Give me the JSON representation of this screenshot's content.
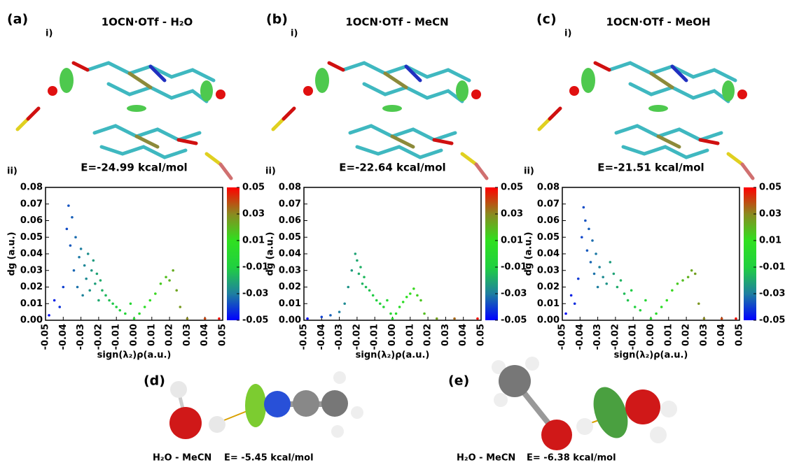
{
  "panels": [
    {
      "label": "(a)",
      "sub": "i)",
      "title": "1OCN·OTf - H₂O"
    },
    {
      "label": "(b)",
      "sub": "i)",
      "title": "1OCN·OTf - MeCN"
    },
    {
      "label": "(c)",
      "sub": "i)",
      "title": "1OCN·OTf - MeOH"
    }
  ],
  "chart_data": [
    {
      "type": "scatter",
      "panel_label": "ii)",
      "title": "E=-24.99 kcal/mol",
      "xlabel": "sign(λ₂)ρ(a.u.)",
      "ylabel": "dg (a.u.)",
      "x": [
        -0.048,
        -0.045,
        -0.042,
        -0.04,
        -0.038,
        -0.037,
        -0.036,
        -0.035,
        -0.034,
        -0.033,
        -0.032,
        -0.031,
        -0.03,
        -0.029,
        -0.028,
        -0.027,
        -0.026,
        -0.025,
        -0.024,
        -0.023,
        -0.022,
        -0.021,
        -0.02,
        -0.019,
        -0.018,
        -0.016,
        -0.014,
        -0.012,
        -0.01,
        -0.008,
        -0.005,
        -0.002,
        0.0,
        0.003,
        0.006,
        0.009,
        0.012,
        0.015,
        0.018,
        0.02,
        0.022,
        0.024,
        0.026,
        0.03,
        0.04,
        0.048
      ],
      "values": [
        0.003,
        0.012,
        0.008,
        0.02,
        0.055,
        0.069,
        0.045,
        0.062,
        0.03,
        0.05,
        0.02,
        0.038,
        0.043,
        0.015,
        0.033,
        0.025,
        0.04,
        0.018,
        0.03,
        0.036,
        0.022,
        0.028,
        0.012,
        0.024,
        0.018,
        0.015,
        0.012,
        0.01,
        0.008,
        0.006,
        0.004,
        0.01,
        0.001,
        0.004,
        0.008,
        0.012,
        0.016,
        0.022,
        0.026,
        0.024,
        0.03,
        0.018,
        0.008,
        0.001,
        0.001,
        0.001
      ],
      "xlim": [
        -0.05,
        0.05
      ],
      "ylim": [
        0,
        0.08
      ],
      "xticks": [
        -0.05,
        -0.04,
        -0.03,
        -0.02,
        -0.01,
        {
          "value": 0,
          "label": "0.00"
        },
        0.01,
        0.02,
        0.03,
        0.04,
        0.05
      ],
      "yticks": [
        {
          "value": 0,
          "label": "0.00"
        },
        0.01,
        0.02,
        0.03,
        0.04,
        0.05,
        0.06,
        0.07,
        0.08
      ],
      "clim": [
        -0.05,
        0.05
      ],
      "cticks": [
        0.05,
        0.03,
        0.01,
        -0.01,
        -0.03,
        -0.05
      ],
      "colormap": [
        "#0000ff",
        "#1f7fa0",
        "#20d040",
        "#30e020",
        "#8a8a20",
        "#ff0000"
      ]
    },
    {
      "type": "scatter",
      "panel_label": "ii)",
      "title": "E=-22.64 kcal/mol",
      "xlabel": "sign(λ₂)ρ(a.u.)",
      "ylabel": "dg (a.u.)",
      "x": [
        -0.048,
        -0.04,
        -0.035,
        -0.03,
        -0.027,
        -0.025,
        -0.023,
        -0.021,
        -0.02,
        -0.019,
        -0.018,
        -0.017,
        -0.016,
        -0.015,
        -0.013,
        -0.011,
        -0.009,
        -0.007,
        -0.005,
        -0.003,
        -0.001,
        0.0,
        0.002,
        0.004,
        0.006,
        0.008,
        0.01,
        0.012,
        0.014,
        0.016,
        0.018,
        0.025,
        0.035,
        0.048
      ],
      "values": [
        0.001,
        0.002,
        0.003,
        0.005,
        0.01,
        0.02,
        0.03,
        0.04,
        0.036,
        0.028,
        0.032,
        0.022,
        0.026,
        0.02,
        0.018,
        0.015,
        0.012,
        0.01,
        0.008,
        0.012,
        0.004,
        0.001,
        0.004,
        0.008,
        0.011,
        0.014,
        0.016,
        0.019,
        0.015,
        0.012,
        0.004,
        0.001,
        0.001,
        0.001
      ],
      "xlim": [
        -0.05,
        0.05
      ],
      "ylim": [
        0,
        0.08
      ],
      "xticks": [
        -0.05,
        -0.04,
        -0.03,
        -0.02,
        -0.01,
        {
          "value": 0,
          "label": "0.00"
        },
        0.01,
        0.02,
        0.03,
        0.04,
        0.05
      ],
      "yticks": [
        {
          "value": 0,
          "label": "0.00"
        },
        0.01,
        0.02,
        0.03,
        0.04,
        0.05,
        0.06,
        0.07,
        0.08
      ],
      "clim": [
        -0.05,
        0.05
      ],
      "cticks": [
        0.05,
        0.03,
        0.01,
        -0.01,
        -0.03,
        -0.05
      ],
      "colormap": [
        "#0000ff",
        "#1f7fa0",
        "#20d040",
        "#30e020",
        "#8a8a20",
        "#ff0000"
      ]
    },
    {
      "type": "scatter",
      "panel_label": "ii)",
      "title": "E=-21.51 kcal/mol",
      "xlabel": "sign(λ₂)ρ(a.u.)",
      "ylabel": "dg (a.u.)",
      "x": [
        -0.048,
        -0.045,
        -0.043,
        -0.041,
        -0.039,
        -0.038,
        -0.037,
        -0.036,
        -0.035,
        -0.034,
        -0.033,
        -0.032,
        -0.031,
        -0.03,
        -0.029,
        -0.027,
        -0.025,
        -0.023,
        -0.021,
        -0.019,
        -0.017,
        -0.015,
        -0.013,
        -0.011,
        -0.009,
        -0.006,
        -0.003,
        0.0,
        0.003,
        0.006,
        0.009,
        0.012,
        0.015,
        0.018,
        0.021,
        0.023,
        0.025,
        0.027,
        0.03,
        0.04,
        0.048
      ],
      "values": [
        0.004,
        0.015,
        0.01,
        0.025,
        0.05,
        0.068,
        0.06,
        0.042,
        0.055,
        0.035,
        0.048,
        0.028,
        0.04,
        0.02,
        0.032,
        0.026,
        0.022,
        0.035,
        0.028,
        0.02,
        0.024,
        0.016,
        0.012,
        0.018,
        0.008,
        0.006,
        0.012,
        0.001,
        0.004,
        0.008,
        0.012,
        0.018,
        0.022,
        0.024,
        0.026,
        0.03,
        0.028,
        0.01,
        0.001,
        0.001,
        0.001
      ],
      "xlim": [
        -0.05,
        0.05
      ],
      "ylim": [
        0,
        0.08
      ],
      "xticks": [
        -0.05,
        -0.04,
        -0.03,
        -0.02,
        -0.01,
        {
          "value": 0,
          "label": "0.00"
        },
        0.01,
        0.02,
        0.03,
        0.04,
        0.05
      ],
      "yticks": [
        {
          "value": 0,
          "label": "0.00"
        },
        0.01,
        0.02,
        0.03,
        0.04,
        0.05,
        0.06,
        0.07,
        0.08
      ],
      "clim": [
        -0.05,
        0.05
      ],
      "cticks": [
        0.05,
        0.03,
        0.01,
        -0.01,
        -0.03,
        -0.05
      ],
      "colormap": [
        "#0000ff",
        "#1f7fa0",
        "#20d040",
        "#30e020",
        "#8a8a20",
        "#ff0000"
      ]
    }
  ],
  "complexes": [
    {
      "label": "(d)",
      "name": "H₂O - MeCN",
      "energy": "E= -5.45 kcal/mol"
    },
    {
      "label": "(e)",
      "name": "H₂O - MeCN",
      "energy": "E= -6.38 kcal/mol"
    }
  ]
}
